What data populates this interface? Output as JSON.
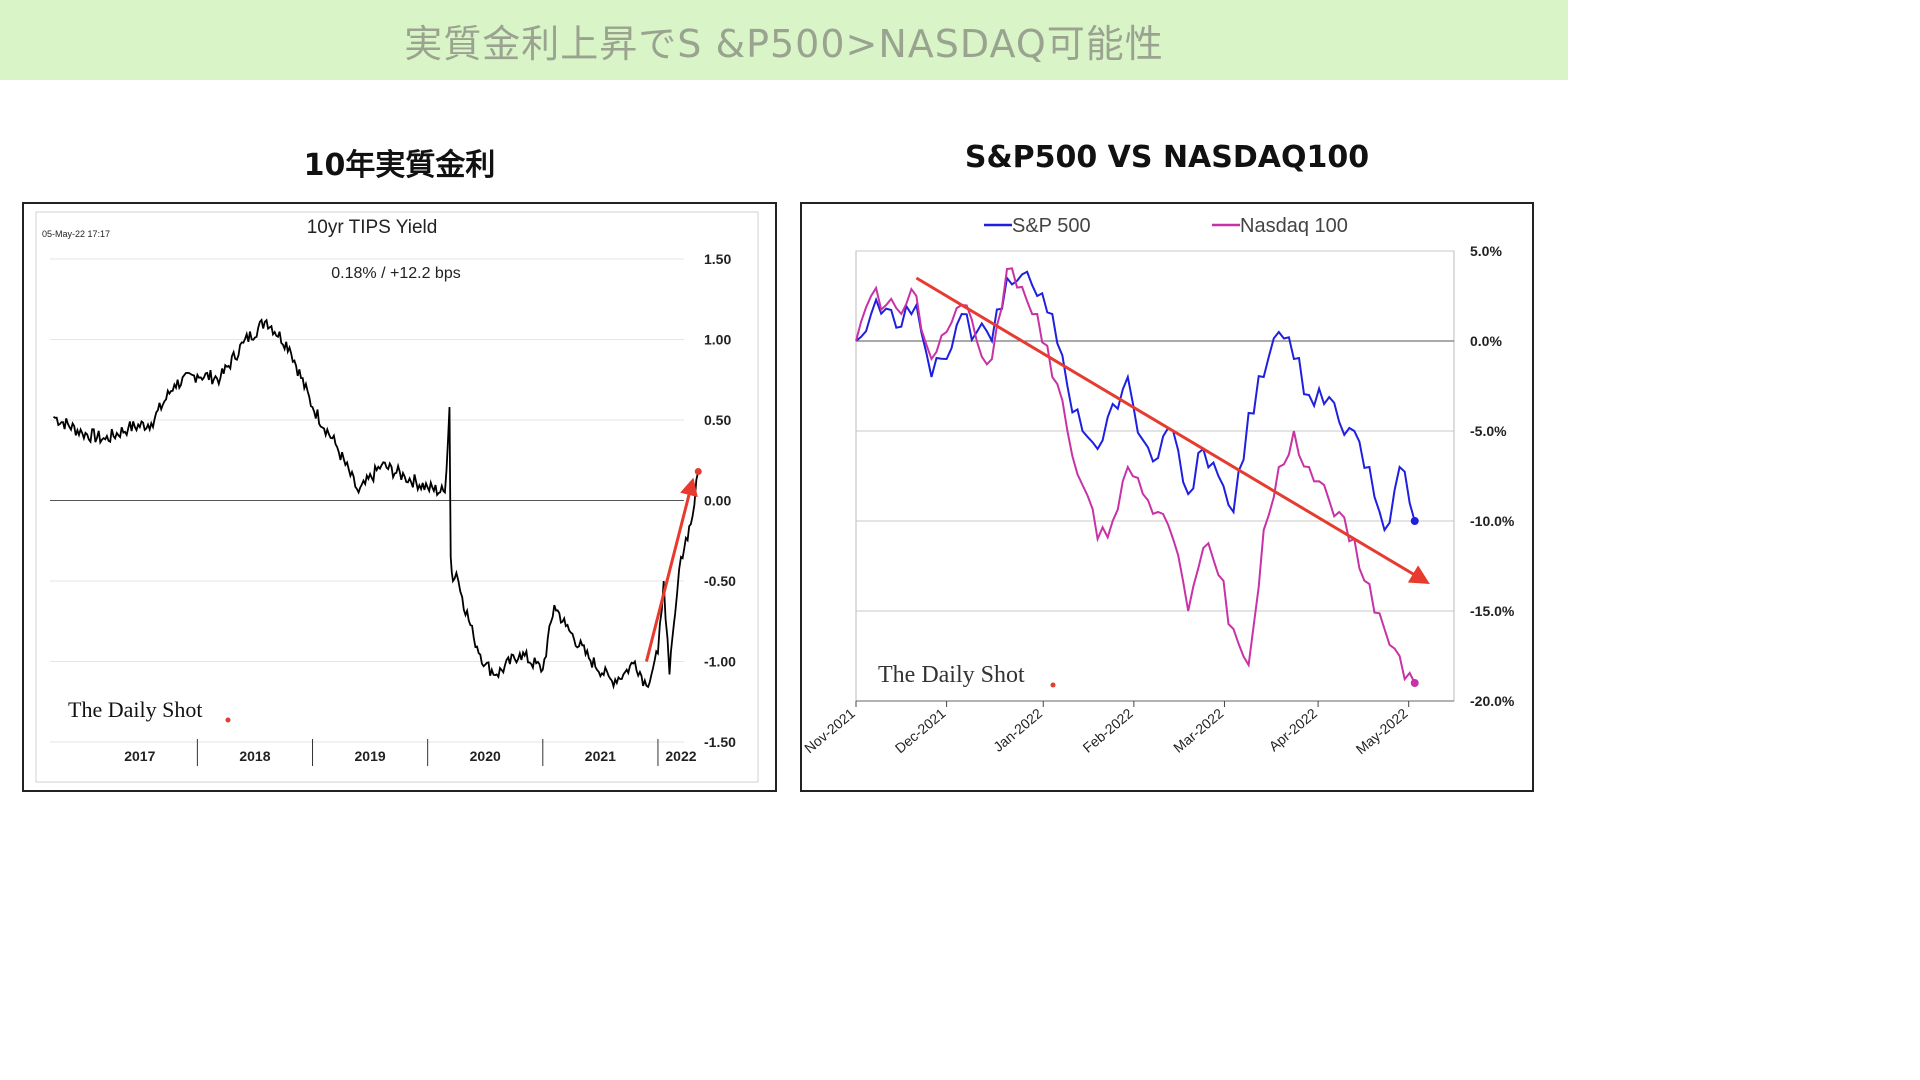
{
  "banner": {
    "title": "実質金利上昇でS &P500>NASDAQ可能性"
  },
  "left_panel": {
    "heading": "10年実質金利"
  },
  "right_panel": {
    "heading": "S&P500 VS NASDAQ100"
  },
  "chart_data": [
    {
      "type": "line",
      "title": "10yr TIPS Yield",
      "subtitle": "0.18%  /  +12.2 bps",
      "timestamp": "05-May-22 17:17",
      "logo": "The Daily Shot",
      "y_ticks": [
        "1.50",
        "1.00",
        "0.50",
        "0.00",
        "-0.50",
        "-1.00",
        "-1.50"
      ],
      "ylim": [
        -1.5,
        1.5
      ],
      "x_labels": [
        "2017",
        "2018",
        "2019",
        "2020",
        "2021",
        "2022"
      ],
      "grid": true,
      "series": [
        {
          "color": "#000000",
          "x": [
            2016.75,
            2017.0,
            2017.2,
            2017.4,
            2017.6,
            2017.8,
            2018.0,
            2018.2,
            2018.4,
            2018.6,
            2018.8,
            2019.0,
            2019.2,
            2019.4,
            2019.6,
            2019.8,
            2020.0,
            2020.15,
            2020.19,
            2020.2,
            2020.22,
            2020.25,
            2020.3,
            2020.4,
            2020.5,
            2020.6,
            2020.8,
            2021.0,
            2021.1,
            2021.2,
            2021.4,
            2021.6,
            2021.7,
            2021.8,
            2021.9,
            2022.0,
            2022.05,
            2022.1,
            2022.15,
            2022.2,
            2022.3,
            2022.35
          ],
          "values": [
            0.52,
            0.42,
            0.38,
            0.45,
            0.48,
            0.72,
            0.78,
            0.76,
            0.98,
            1.12,
            0.95,
            0.58,
            0.35,
            0.05,
            0.22,
            0.15,
            0.08,
            0.05,
            0.58,
            -0.35,
            -0.5,
            -0.45,
            -0.6,
            -0.85,
            -1.02,
            -1.08,
            -0.95,
            -1.05,
            -0.65,
            -0.78,
            -0.98,
            -1.12,
            -1.08,
            -1.0,
            -1.15,
            -0.95,
            -0.5,
            -1.08,
            -0.7,
            -0.35,
            -0.1,
            0.18
          ]
        }
      ],
      "annotation": {
        "from": {
          "x": 2021.9,
          "y": -1.0
        },
        "to": {
          "x": 2022.3,
          "y": 0.12
        },
        "color": "#e63b2e"
      },
      "endpoint": {
        "x": 2022.35,
        "y": 0.18,
        "color": "#e63b2e"
      }
    },
    {
      "type": "line",
      "logo": "The Daily Shot",
      "y_ticks": [
        "5.0%",
        "0.0%",
        "-5.0%",
        "-10.0%",
        "-15.0%",
        "-20.0%"
      ],
      "ylim": [
        -20,
        5
      ],
      "x_labels": [
        "Nov-2021",
        "Dec-2021",
        "Jan-2022",
        "Feb-2022",
        "Mar-2022",
        "Apr-2022",
        "May-2022"
      ],
      "grid": true,
      "legend": "top",
      "series": [
        {
          "name": "S&P 500",
          "color": "#1f1fe0",
          "x": [
            0,
            5,
            10,
            15,
            20,
            25,
            30,
            35,
            40,
            45,
            50,
            55,
            60,
            65,
            70,
            75,
            80,
            85,
            90,
            95,
            100,
            105,
            110,
            115,
            120,
            125,
            130,
            135,
            140,
            145,
            150,
            155,
            160,
            165,
            170,
            175,
            180,
            185
          ],
          "values": [
            0.0,
            1.5,
            1.8,
            0.8,
            2.0,
            -2.0,
            -1.0,
            1.5,
            0.5,
            0.0,
            3.5,
            3.7,
            2.5,
            1.5,
            -2.5,
            -5.0,
            -6.0,
            -3.5,
            -2.0,
            -5.5,
            -6.5,
            -5.0,
            -8.5,
            -6.0,
            -7.5,
            -9.5,
            -4.0,
            -2.0,
            0.5,
            -1.0,
            -3.0,
            -3.5,
            -4.5,
            -5.0,
            -7.0,
            -10.5,
            -7.0,
            -10.0
          ]
        },
        {
          "name": "Nasdaq 100",
          "color": "#c832a6",
          "x": [
            0,
            5,
            10,
            15,
            20,
            25,
            30,
            35,
            40,
            45,
            50,
            55,
            60,
            65,
            70,
            75,
            80,
            85,
            90,
            95,
            100,
            105,
            110,
            115,
            120,
            125,
            130,
            135,
            140,
            145,
            150,
            155,
            160,
            165,
            170,
            175,
            180,
            185
          ],
          "values": [
            0.0,
            2.5,
            2.0,
            1.5,
            2.5,
            -1.0,
            0.5,
            2.0,
            0.0,
            -1.0,
            4.0,
            3.0,
            1.5,
            -2.0,
            -5.0,
            -8.0,
            -11.0,
            -10.0,
            -7.0,
            -8.5,
            -9.5,
            -11.0,
            -15.0,
            -11.5,
            -13.0,
            -16.0,
            -18.0,
            -10.5,
            -7.0,
            -5.0,
            -7.0,
            -8.0,
            -9.5,
            -11.0,
            -13.5,
            -16.0,
            -17.5,
            -19.0
          ]
        }
      ],
      "x_label_positions": [
        0,
        30,
        62,
        92,
        122,
        153,
        183
      ],
      "annotation": {
        "from": {
          "x": 20,
          "y": 3.5
        },
        "to": {
          "x": 190,
          "y": -13.5
        },
        "color": "#e63b2e"
      }
    }
  ]
}
